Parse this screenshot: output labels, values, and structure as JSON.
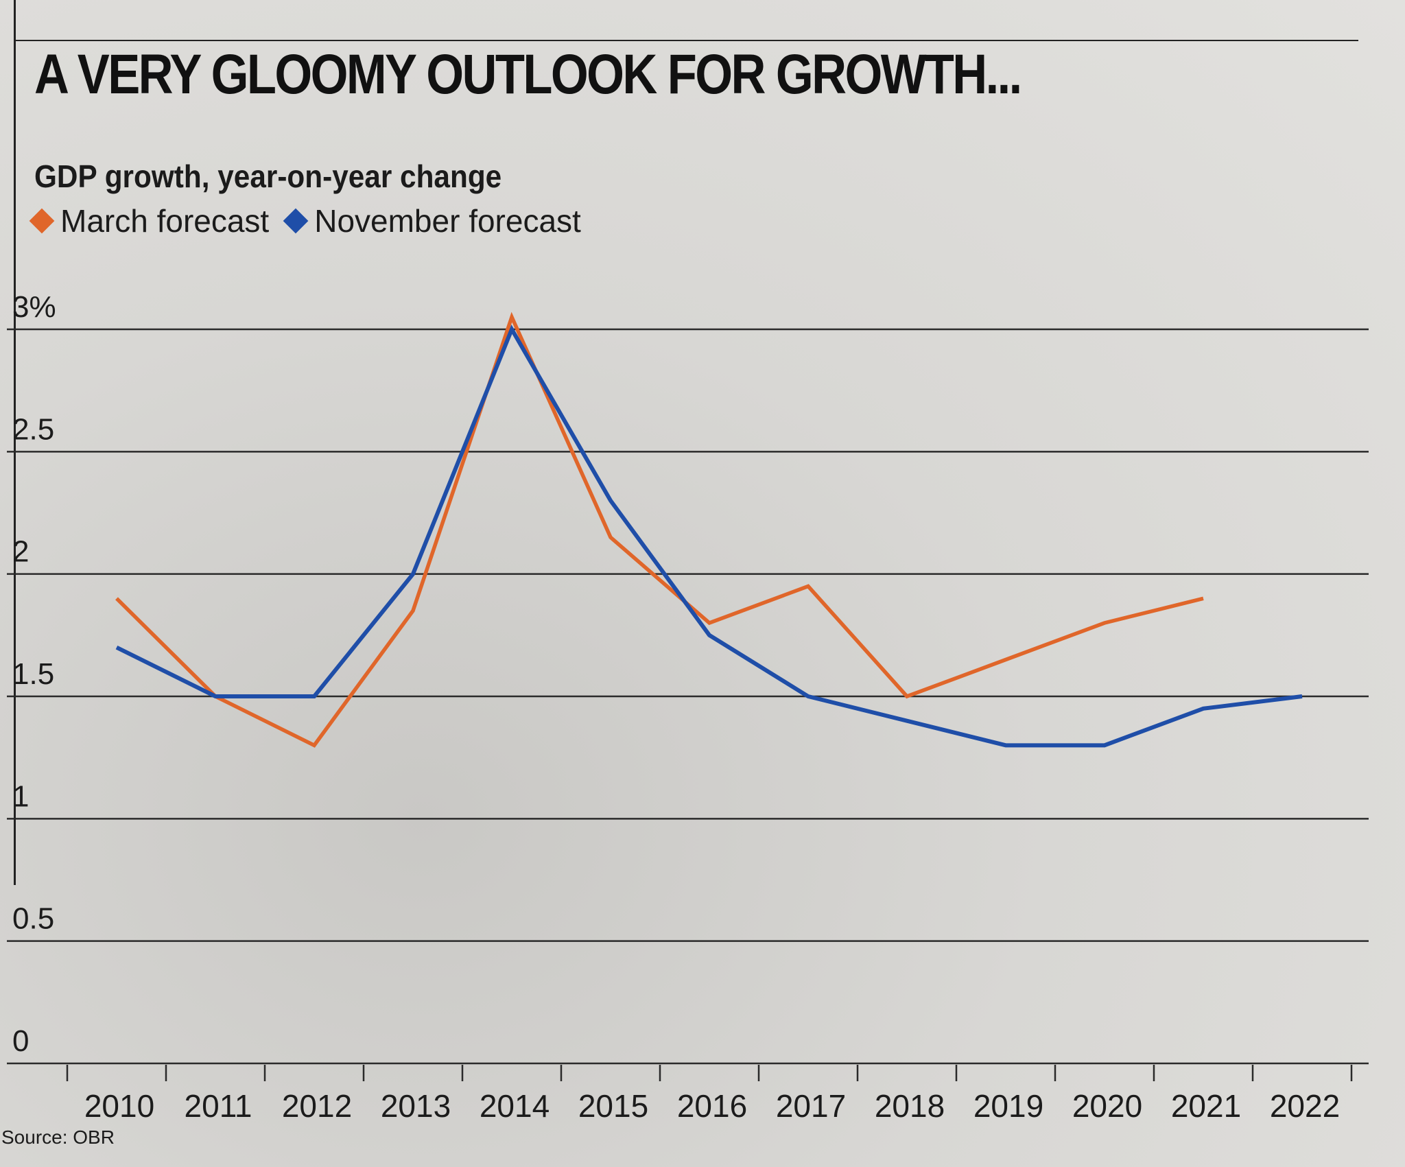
{
  "chart_data": {
    "type": "line",
    "title": "A VERY GLOOMY OUTLOOK FOR GROWTH...",
    "subtitle": "GDP growth, year-on-year change",
    "categories": [
      "2010",
      "2011",
      "2012",
      "2013",
      "2014",
      "2015",
      "2016",
      "2017",
      "2018",
      "2019",
      "2020",
      "2021",
      "2022"
    ],
    "series": [
      {
        "name": "March forecast",
        "color": "#e0662a",
        "values": [
          1.9,
          1.5,
          1.3,
          1.85,
          3.05,
          2.15,
          1.8,
          1.95,
          1.5,
          1.65,
          1.8,
          1.9,
          null
        ]
      },
      {
        "name": "November forecast",
        "color": "#1f4ea8",
        "values": [
          1.7,
          1.5,
          1.5,
          2.0,
          3.0,
          2.3,
          1.75,
          1.5,
          1.4,
          1.3,
          1.3,
          1.45,
          1.5
        ]
      }
    ],
    "yticks": [
      "0",
      "0.5",
      "1",
      "1.5",
      "2",
      "2.5",
      "3%"
    ],
    "ylim": [
      0,
      3
    ],
    "grid": true,
    "legend_position": "top-left",
    "source": "Source: OBR"
  }
}
